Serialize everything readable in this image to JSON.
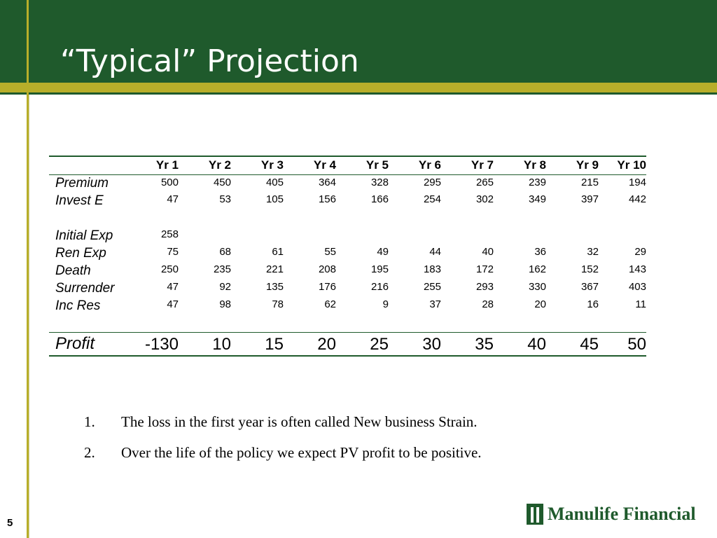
{
  "slide": {
    "title": "“Typical” Projection",
    "page_number": "5",
    "logo_text": "Manulife Financial"
  },
  "table": {
    "headers": [
      "",
      "Yr 1",
      "Yr 2",
      "Yr 3",
      "Yr 4",
      "Yr 5",
      "Yr 6",
      "Yr 7",
      "Yr 8",
      "Yr 9",
      "Yr 10"
    ],
    "rows": [
      {
        "label": "Premium",
        "values": [
          "500",
          "450",
          "405",
          "364",
          "328",
          "295",
          "265",
          "239",
          "215",
          "194"
        ]
      },
      {
        "label": "Invest E",
        "values": [
          "47",
          "53",
          "105",
          "156",
          "166",
          "254",
          "302",
          "349",
          "397",
          "442"
        ]
      },
      {
        "label": "Initial Exp",
        "values": [
          "258",
          "",
          "",
          "",
          "",
          "",
          "",
          "",
          "",
          ""
        ]
      },
      {
        "label": "Ren Exp",
        "values": [
          "75",
          "68",
          "61",
          "55",
          "49",
          "44",
          "40",
          "36",
          "32",
          "29"
        ]
      },
      {
        "label": "Death",
        "values": [
          "250",
          "235",
          "221",
          "208",
          "195",
          "183",
          "172",
          "162",
          "152",
          "143"
        ]
      },
      {
        "label": "Surrender",
        "values": [
          "47",
          "92",
          "135",
          "176",
          "216",
          "255",
          "293",
          "330",
          "367",
          "403"
        ]
      },
      {
        "label": "Inc Res",
        "values": [
          "47",
          "98",
          "78",
          "62",
          "9",
          "37",
          "28",
          "20",
          "16",
          "11"
        ]
      }
    ],
    "profit": {
      "label": "Profit",
      "values": [
        "-130",
        "10",
        "15",
        "20",
        "25",
        "30",
        "35",
        "40",
        "45",
        "50"
      ]
    }
  },
  "notes": [
    {
      "marker": "1.",
      "text": "The loss in the first year is often called New business Strain."
    },
    {
      "marker": "2.",
      "text": "Over the life of the policy we expect PV profit to be positive."
    }
  ],
  "colors": {
    "header_green": "#1f5a2c",
    "stripe_gold": "#b8ae2a"
  }
}
